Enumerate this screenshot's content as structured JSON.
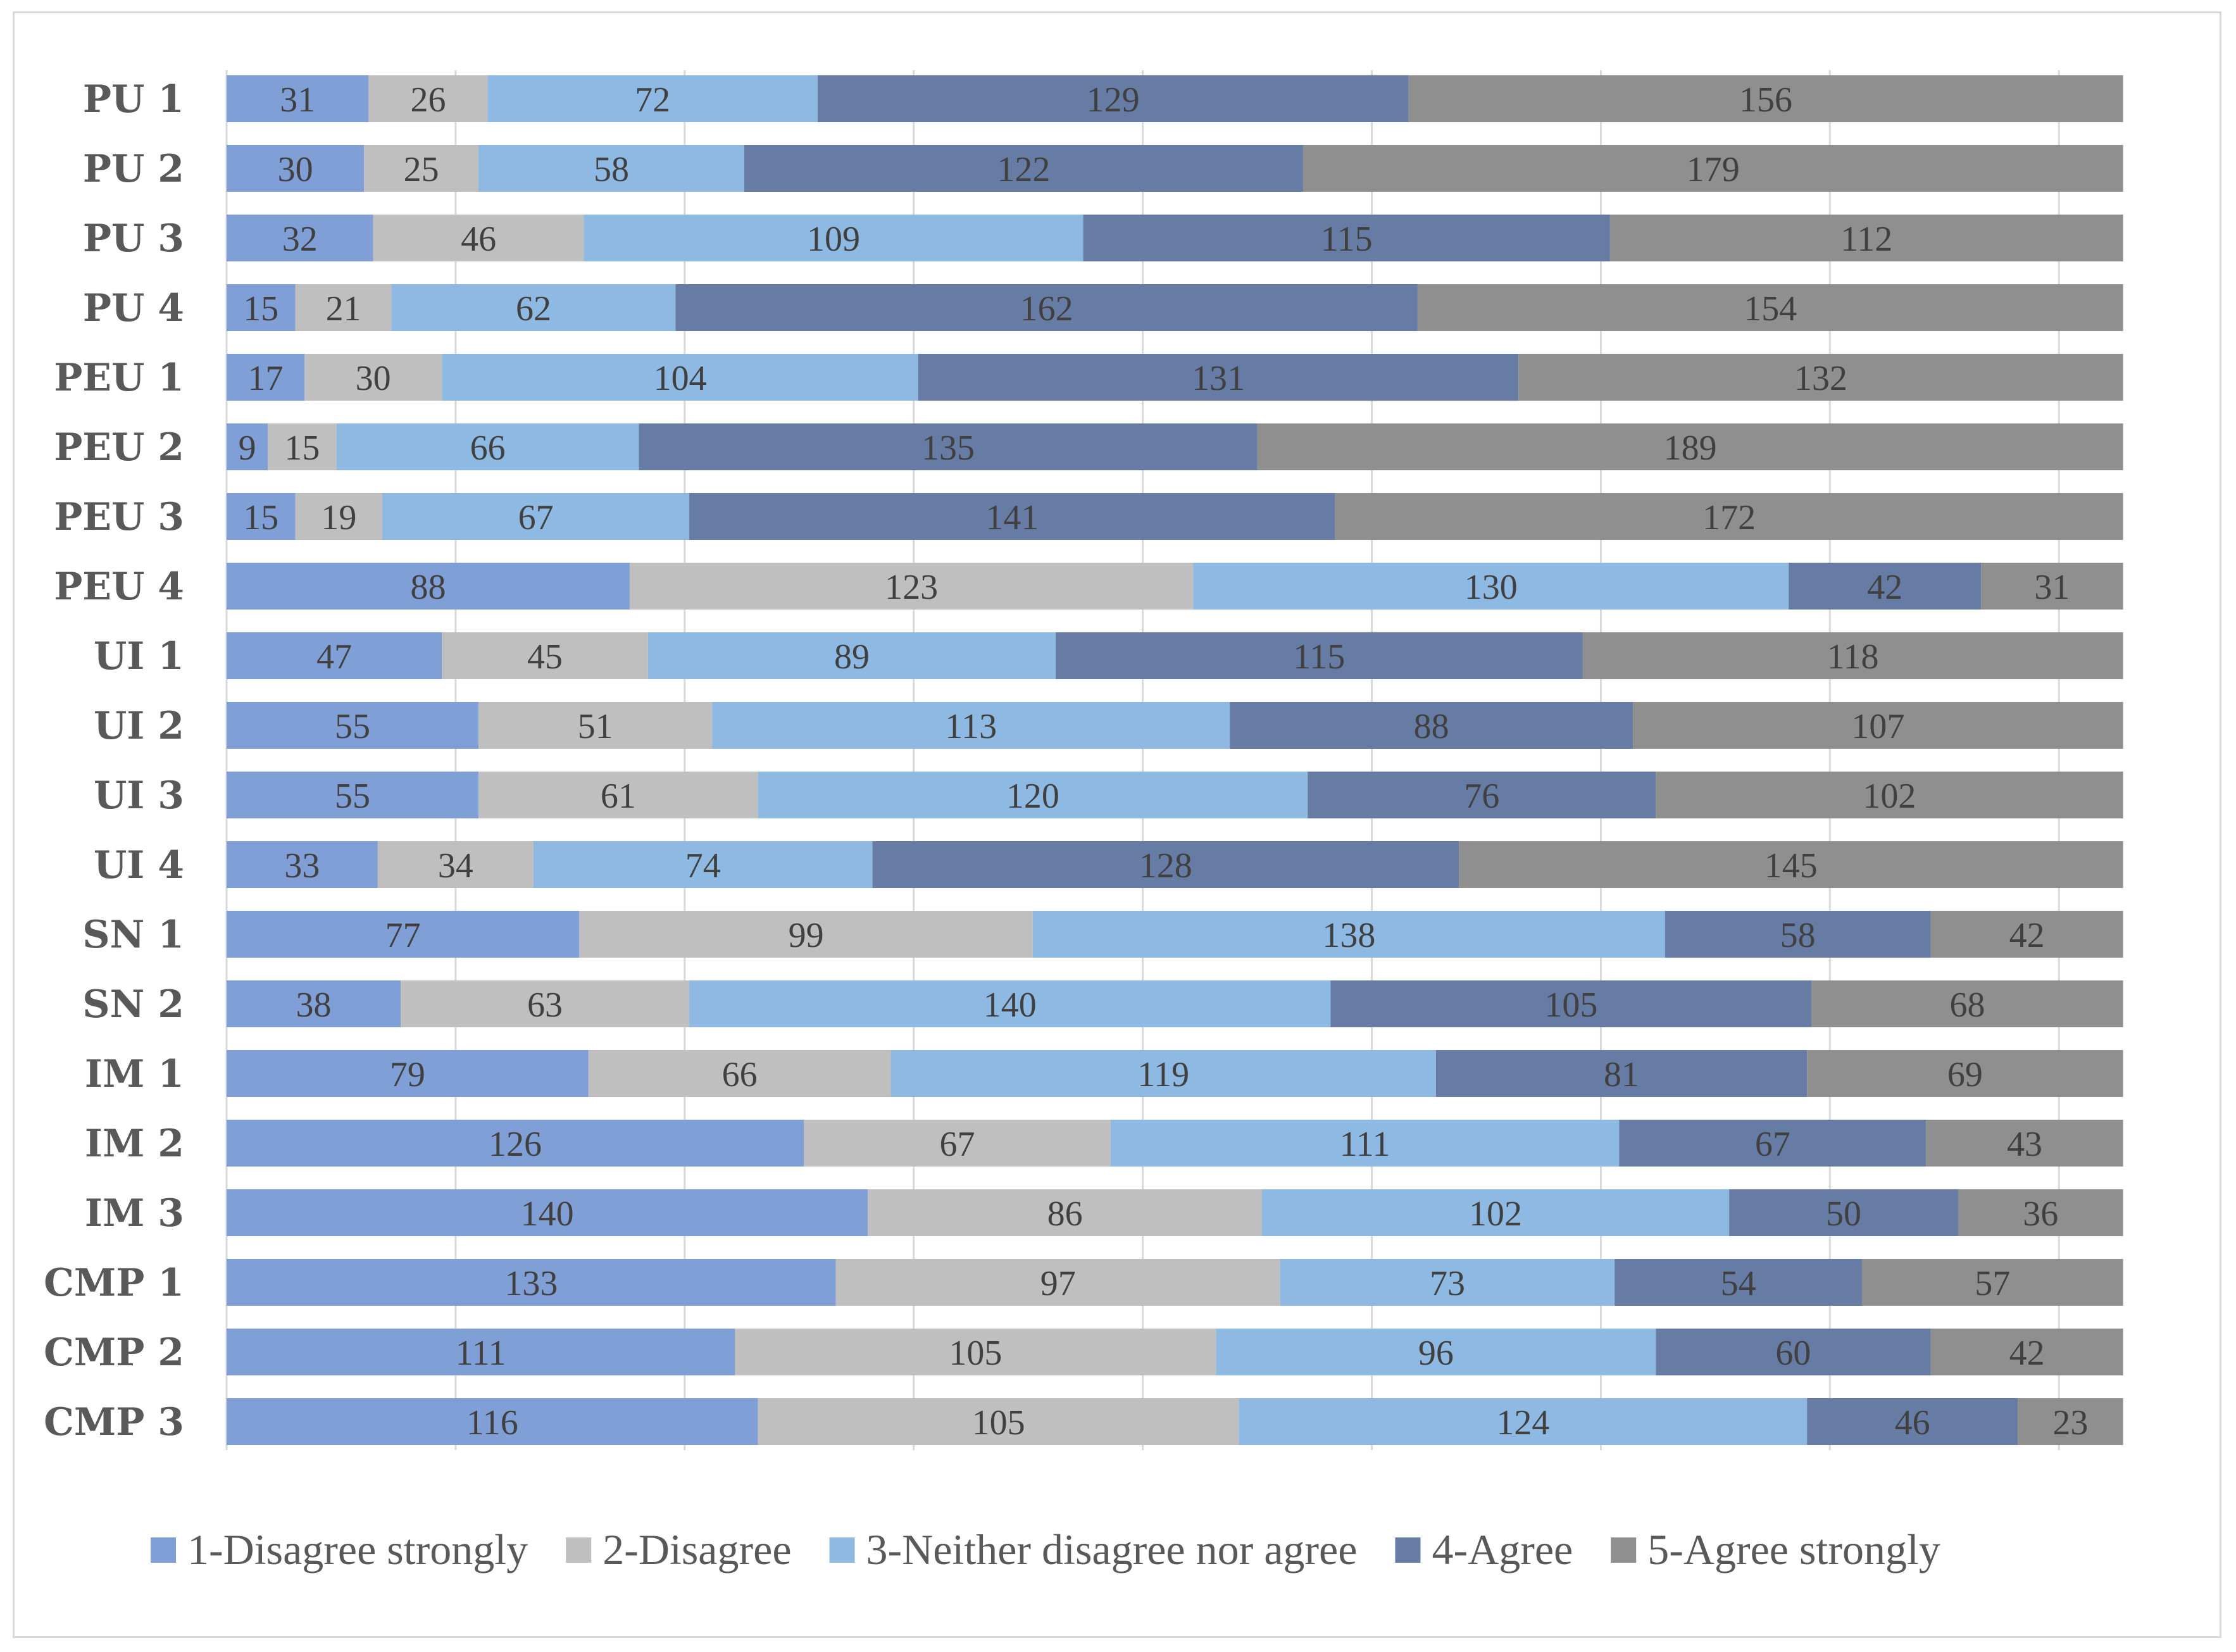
{
  "chart_data": {
    "type": "bar",
    "orientation": "horizontal",
    "stacked": true,
    "title": "",
    "xlabel": "",
    "ylabel": "",
    "xlim": [
      0,
      420
    ],
    "grid": true,
    "legend_position": "bottom",
    "categories": [
      "PU 1",
      "PU 2",
      "PU 3",
      "PU 4",
      "PEU 1",
      "PEU 2",
      "PEU 3",
      "PEU 4",
      "UI 1",
      "UI 2",
      "UI 3",
      "UI 4",
      "SN 1",
      "SN 2",
      "IM 1",
      "IM 2",
      "IM 3",
      "CMP 1",
      "CMP 2",
      "CMP 3"
    ],
    "series": [
      {
        "name": "1-Disagree strongly",
        "color": "#7f9fd6",
        "values": [
          31,
          30,
          32,
          15,
          17,
          9,
          15,
          88,
          47,
          55,
          55,
          33,
          77,
          38,
          79,
          126,
          140,
          133,
          111,
          116
        ]
      },
      {
        "name": "2-Disagree",
        "color": "#bfbfbf",
        "values": [
          26,
          25,
          46,
          21,
          30,
          15,
          19,
          123,
          45,
          51,
          61,
          34,
          99,
          63,
          66,
          67,
          86,
          97,
          105,
          105
        ]
      },
      {
        "name": "3-Neither disagree nor agree",
        "color": "#8db9e2",
        "values": [
          72,
          58,
          109,
          62,
          104,
          66,
          67,
          130,
          89,
          113,
          120,
          74,
          138,
          140,
          119,
          111,
          102,
          73,
          96,
          124
        ]
      },
      {
        "name": "4-Agree",
        "color": "#667ca4",
        "values": [
          129,
          122,
          115,
          162,
          131,
          135,
          141,
          42,
          115,
          88,
          76,
          128,
          58,
          105,
          81,
          67,
          50,
          54,
          60,
          46
        ]
      },
      {
        "name": "5-Agree strongly",
        "color": "#8f8f8f",
        "values": [
          156,
          179,
          112,
          154,
          132,
          189,
          172,
          31,
          118,
          107,
          102,
          145,
          42,
          68,
          69,
          43,
          36,
          57,
          42,
          23
        ]
      }
    ]
  }
}
